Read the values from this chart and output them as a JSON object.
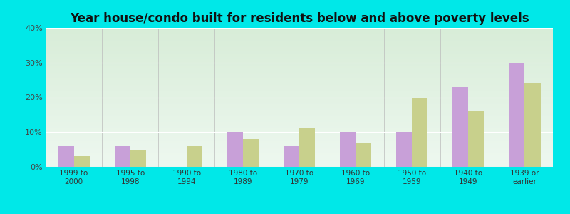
{
  "title": "Year house/condo built for residents below and above poverty levels",
  "categories": [
    "1999 to\n2000",
    "1995 to\n1998",
    "1990 to\n1994",
    "1980 to\n1989",
    "1970 to\n1979",
    "1960 to\n1969",
    "1950 to\n1959",
    "1940 to\n1949",
    "1939 or\nearlier"
  ],
  "below_poverty": [
    6,
    6,
    0,
    10,
    6,
    10,
    10,
    23,
    30
  ],
  "above_poverty": [
    3,
    5,
    6,
    8,
    11,
    7,
    20,
    16,
    24
  ],
  "below_color": "#c8a0d8",
  "above_color": "#c8d08c",
  "ylim": [
    0,
    40
  ],
  "yticks": [
    0,
    10,
    20,
    30,
    40
  ],
  "ytick_labels": [
    "0%",
    "10%",
    "20%",
    "30%",
    "40%"
  ],
  "outer_bg": "#00e8e8",
  "plot_bg_top": "#d8edd8",
  "plot_bg_bottom": "#eef8f0",
  "title_fontsize": 12,
  "bar_width": 0.28,
  "tick_fontsize": 7.5,
  "ytick_fontsize": 8
}
